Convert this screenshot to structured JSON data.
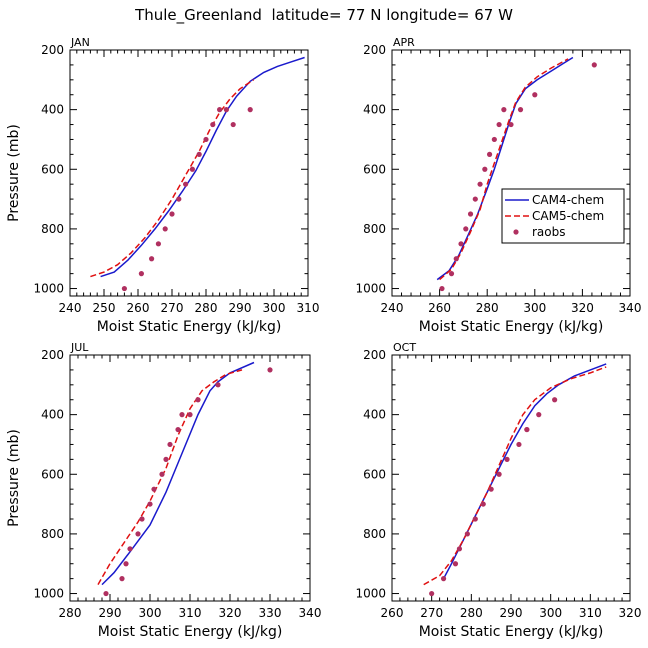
{
  "figure": {
    "title": "Thule_Greenland  latitude= 77 N longitude= 67 W"
  },
  "colors": {
    "cam4": "#1a1acc",
    "cam5": "#e01010",
    "raobs": "#b03060",
    "axis": "#000000"
  },
  "chart_data": [
    {
      "type": "line",
      "panel_label": "JAN",
      "xlabel": "Moist Static Energy (kJ/kg)",
      "ylabel": "Pressure (mb)",
      "xlim": [
        240,
        310
      ],
      "ylim": [
        1025,
        200
      ],
      "xticks": [
        240,
        250,
        260,
        270,
        280,
        290,
        300,
        310
      ],
      "yticks": [
        200,
        400,
        600,
        800,
        1000
      ],
      "legend": null,
      "series": [
        {
          "name": "CAM4-chem",
          "style": "solid",
          "x": [
            249,
            253,
            257,
            261,
            265,
            269,
            273,
            277,
            280,
            283,
            286,
            289,
            293,
            297,
            301,
            305,
            309
          ],
          "y": [
            960,
            945,
            905,
            855,
            800,
            740,
            675,
            605,
            540,
            470,
            405,
            355,
            305,
            275,
            255,
            240,
            225
          ]
        },
        {
          "name": "CAM5-chem",
          "style": "dashed",
          "x": [
            246,
            250,
            254,
            258,
            262,
            266,
            270,
            274,
            278,
            281,
            284,
            287,
            290,
            294
          ],
          "y": [
            960,
            945,
            920,
            880,
            830,
            770,
            700,
            620,
            540,
            470,
            410,
            365,
            330,
            300
          ]
        },
        {
          "name": "raobs",
          "style": "points",
          "x": [
            256,
            261,
            264,
            266,
            268,
            270,
            272,
            274,
            276,
            278,
            280,
            282,
            284,
            286,
            288,
            293
          ],
          "y": [
            1000,
            950,
            900,
            850,
            800,
            750,
            700,
            650,
            600,
            550,
            500,
            450,
            400,
            400,
            450,
            400
          ]
        }
      ]
    },
    {
      "type": "line",
      "panel_label": "APR",
      "xlabel": "Moist Static Energy (kJ/kg)",
      "ylabel": "",
      "xlim": [
        240,
        340
      ],
      "ylim": [
        1025,
        200
      ],
      "xticks": [
        240,
        260,
        280,
        300,
        320,
        340
      ],
      "yticks": [
        200,
        400,
        600,
        800,
        1000
      ],
      "legend": {
        "position": "right-middle",
        "entries": [
          "CAM4-chem",
          "CAM5-chem",
          "raobs"
        ]
      },
      "series": [
        {
          "name": "CAM4-chem",
          "style": "solid",
          "x": [
            259,
            264,
            268,
            272,
            276,
            280,
            283,
            286,
            289,
            292,
            296,
            301,
            307,
            312,
            316
          ],
          "y": [
            970,
            940,
            890,
            820,
            750,
            665,
            600,
            525,
            450,
            380,
            330,
            300,
            270,
            245,
            225
          ]
        },
        {
          "name": "CAM5-chem",
          "style": "dashed",
          "x": [
            260,
            265,
            269,
            273,
            277,
            280,
            283,
            286,
            289,
            292,
            296,
            301,
            307,
            314
          ],
          "y": [
            970,
            935,
            880,
            810,
            735,
            650,
            580,
            510,
            440,
            375,
            325,
            290,
            260,
            230
          ]
        },
        {
          "name": "raobs",
          "style": "points",
          "x": [
            261,
            265,
            267,
            269,
            271,
            273,
            275,
            277,
            279,
            281,
            283,
            285,
            287,
            290,
            294,
            300,
            325
          ],
          "y": [
            1000,
            950,
            900,
            850,
            800,
            750,
            700,
            650,
            600,
            550,
            500,
            450,
            400,
            450,
            400,
            350,
            250
          ]
        }
      ]
    },
    {
      "type": "line",
      "panel_label": "JUL",
      "xlabel": "Moist Static Energy (kJ/kg)",
      "ylabel": "Pressure (mb)",
      "xlim": [
        280,
        340
      ],
      "ylim": [
        1025,
        200
      ],
      "xticks": [
        280,
        290,
        300,
        310,
        320,
        330,
        340
      ],
      "yticks": [
        200,
        400,
        600,
        800,
        1000
      ],
      "legend": null,
      "series": [
        {
          "name": "CAM4-chem",
          "style": "solid",
          "x": [
            288,
            291,
            295,
            300,
            304,
            308,
            312,
            315,
            317,
            320,
            326
          ],
          "y": [
            970,
            930,
            860,
            770,
            660,
            530,
            400,
            320,
            290,
            260,
            225
          ]
        },
        {
          "name": "CAM5-chem",
          "style": "dashed",
          "x": [
            287,
            290,
            293,
            297,
            300,
            304,
            307,
            310,
            313,
            316,
            319,
            323
          ],
          "y": [
            970,
            900,
            840,
            760,
            690,
            580,
            470,
            380,
            320,
            290,
            265,
            250
          ]
        },
        {
          "name": "raobs",
          "style": "points",
          "x": [
            289,
            293,
            294,
            295,
            297,
            298,
            300,
            301,
            303,
            304,
            305,
            307,
            308,
            310,
            312,
            317,
            330
          ],
          "y": [
            1000,
            950,
            900,
            850,
            800,
            750,
            700,
            650,
            600,
            550,
            500,
            450,
            400,
            400,
            350,
            300,
            250
          ]
        }
      ]
    },
    {
      "type": "line",
      "panel_label": "OCT",
      "xlabel": "Moist Static Energy (kJ/kg)",
      "ylabel": "",
      "xlim": [
        260,
        320
      ],
      "ylim": [
        1025,
        200
      ],
      "xticks": [
        260,
        270,
        280,
        290,
        300,
        310,
        320
      ],
      "yticks": [
        200,
        400,
        600,
        800,
        1000
      ],
      "legend": null,
      "series": [
        {
          "name": "CAM4-chem",
          "style": "solid",
          "x": [
            273,
            275,
            278,
            281,
            284,
            287,
            290,
            293,
            296,
            299,
            302,
            306,
            310,
            314
          ],
          "y": [
            950,
            900,
            820,
            740,
            660,
            580,
            500,
            430,
            370,
            330,
            300,
            270,
            250,
            230
          ]
        },
        {
          "name": "CAM5-chem",
          "style": "dashed",
          "x": [
            268,
            272,
            275,
            278,
            281,
            284,
            287,
            290,
            293,
            296,
            300,
            305,
            310,
            314
          ],
          "y": [
            970,
            940,
            890,
            820,
            740,
            660,
            570,
            480,
            400,
            350,
            310,
            280,
            260,
            240
          ]
        },
        {
          "name": "raobs",
          "style": "points",
          "x": [
            270,
            273,
            276,
            277,
            279,
            281,
            283,
            285,
            287,
            289,
            292,
            294,
            294,
            297,
            301
          ],
          "y": [
            1000,
            950,
            900,
            850,
            800,
            750,
            700,
            650,
            600,
            550,
            500,
            450,
            450,
            400,
            350
          ]
        }
      ]
    }
  ]
}
